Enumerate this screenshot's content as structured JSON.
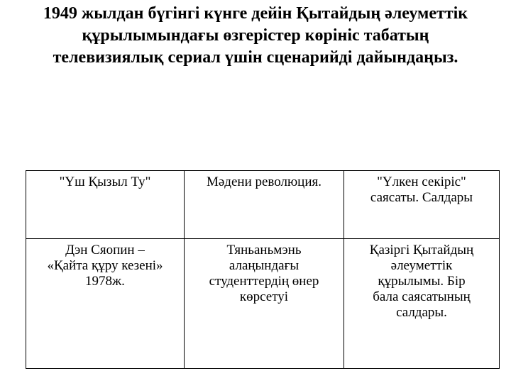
{
  "title": {
    "lines": [
      "1949 жылдан бүгінгі күнге дейін Қытайдың әлеуметтік",
      "құрылымындағы өзгерістер көрініс табатың",
      "телевизиялық сериал үшін сценарийді дайындаңыз."
    ]
  },
  "table": {
    "rows": [
      {
        "cells": [
          "\"Үш Қызыл Ту\"",
          "Мәдени революция.",
          "\"Үлкен секіріс\"\nсаясаты. Салдары"
        ]
      },
      {
        "cells": [
          "Дэн Сяопин –\n«Қайта құру кезені»\n1978ж.",
          "Тяньаньмэнь\nалаңындағы\nстуденттердің өнер\nкөрсетуі",
          "Қазіргі Қытайдың\nәлеуметтік\nқұрылымы. Бір\nбала саясатының\nсалдары."
        ]
      }
    ]
  },
  "colors": {
    "background": "#ffffff",
    "text": "#000000",
    "border": "#000000"
  }
}
